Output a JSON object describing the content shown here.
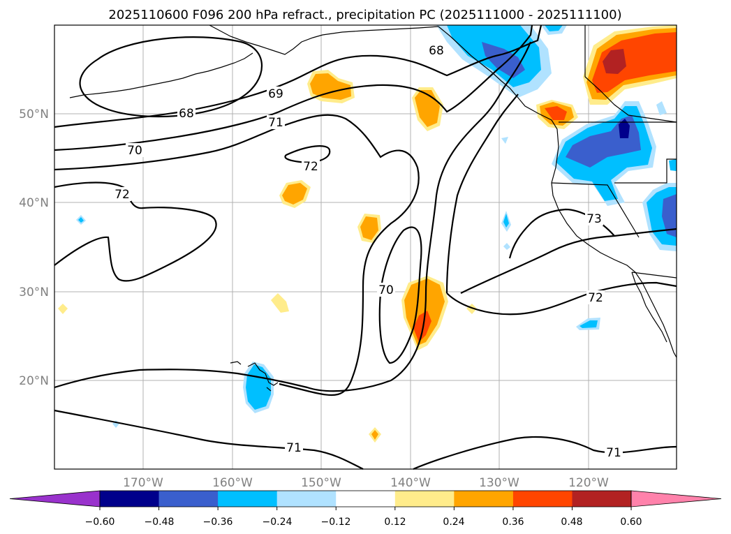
{
  "title": "2025110600 F096 200 hPa refract., precipitation PC (2025111000 - 2025111100)",
  "lat_labels": [
    "50°N",
    "40°N",
    "30°N",
    "20°N"
  ],
  "lon_labels": [
    "170°W",
    "160°W",
    "150°W",
    "140°W",
    "130°W",
    "120°W"
  ],
  "contour_labels": [
    "68",
    "69",
    "68",
    "70",
    "71",
    "72",
    "72",
    "70",
    "73",
    "72",
    "71",
    "71"
  ],
  "colorbar": {
    "colors": [
      "#9932cc",
      "#00008b",
      "#3a5fcd",
      "#00bfff",
      "#b0e2ff",
      "#ffffff",
      "#ffec8b",
      "#ffa500",
      "#ff4500",
      "#b22222",
      "#ff82ab"
    ],
    "tick_labels": [
      "−0.60",
      "−0.48",
      "−0.36",
      "−0.24",
      "−0.12",
      "0.12",
      "0.24",
      "0.36",
      "0.48",
      "0.60"
    ]
  },
  "legend_colors": {
    "light_blue": "#b0e2ff",
    "blue": "#00bfff",
    "mid_blue": "#3a5fcd",
    "dark_blue": "#00008b",
    "yellow": "#ffec8b",
    "orange": "#ffa500",
    "red_orange": "#ff4500",
    "dark_red": "#b22222"
  }
}
